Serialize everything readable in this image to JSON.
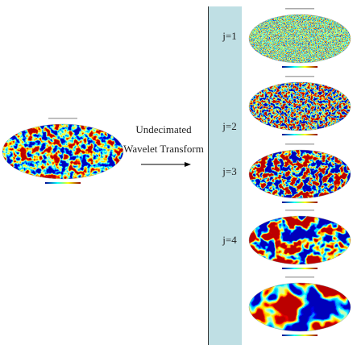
{
  "transform": {
    "line1": "Undecimated",
    "line2": "Wavelet Transform"
  },
  "scales": [
    {
      "label": "j=1"
    },
    {
      "label": "j=2"
    },
    {
      "label": "j=3"
    },
    {
      "label": "j=4"
    }
  ]
}
